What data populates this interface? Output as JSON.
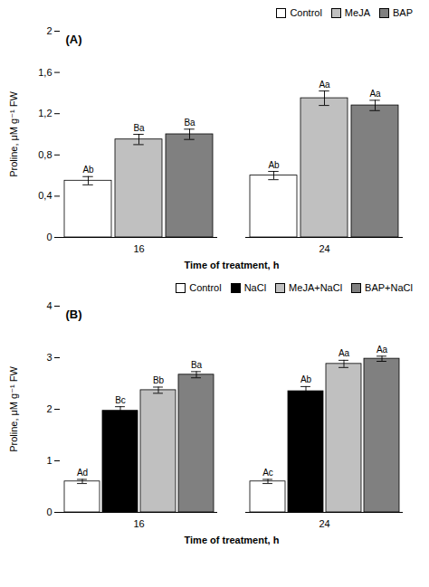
{
  "chart_data": [
    {
      "type": "bar",
      "title": "(A)",
      "x_label": "Time of treatment, h",
      "y_label": "Proline, μM g⁻¹ FW",
      "categories": [
        "16",
        "24"
      ],
      "series": [
        {
          "name": "Control",
          "color": "#ffffff",
          "values": [
            0.55,
            0.6
          ],
          "errors": [
            0.04,
            0.04
          ],
          "annotations": [
            "Ab",
            "Ab"
          ]
        },
        {
          "name": "MeJA",
          "color": "#c0c0c0",
          "values": [
            0.95,
            1.35
          ],
          "errors": [
            0.05,
            0.07
          ],
          "annotations": [
            "Ba",
            "Aa"
          ]
        },
        {
          "name": "BAP",
          "color": "#808080",
          "values": [
            1.0,
            1.28
          ],
          "errors": [
            0.05,
            0.05
          ],
          "annotations": [
            "Ba",
            "Aa"
          ]
        }
      ],
      "ylim": [
        0,
        2
      ],
      "yticks": [
        0,
        {
          "value": 0.4,
          "label": "0,4"
        },
        {
          "value": 0.8,
          "label": "0,8"
        },
        {
          "value": 1.2,
          "label": "1,2"
        },
        {
          "value": 1.6,
          "label": "1,6"
        },
        2
      ],
      "grid": false,
      "legend": "upper right"
    },
    {
      "type": "bar",
      "title": "(B)",
      "x_label": "Time of treatment, h",
      "y_label": "Proline, μM g⁻¹ FW",
      "categories": [
        "16",
        "24"
      ],
      "series": [
        {
          "name": "Control",
          "color": "#ffffff",
          "values": [
            0.6,
            0.6
          ],
          "errors": [
            0.04,
            0.04
          ],
          "annotations": [
            "Ad",
            "Ac"
          ]
        },
        {
          "name": "NaCl",
          "color": "#000000",
          "values": [
            1.97,
            2.35
          ],
          "errors": [
            0.08,
            0.09
          ],
          "annotations": [
            "Bc",
            "Ab"
          ]
        },
        {
          "name": "MeJA+NaCl",
          "color": "#c0c0c0",
          "values": [
            2.37,
            2.88
          ],
          "errors": [
            0.06,
            0.07
          ],
          "annotations": [
            "Bb",
            "Aa"
          ]
        },
        {
          "name": "BAP+NaCl",
          "color": "#808080",
          "values": [
            2.67,
            2.98
          ],
          "errors": [
            0.06,
            0.05
          ],
          "annotations": [
            "Ba",
            "Aa"
          ]
        }
      ],
      "ylim": [
        0,
        4
      ],
      "yticks": [
        0,
        1,
        2,
        3,
        4
      ],
      "grid": false,
      "legend": "upper right"
    }
  ]
}
